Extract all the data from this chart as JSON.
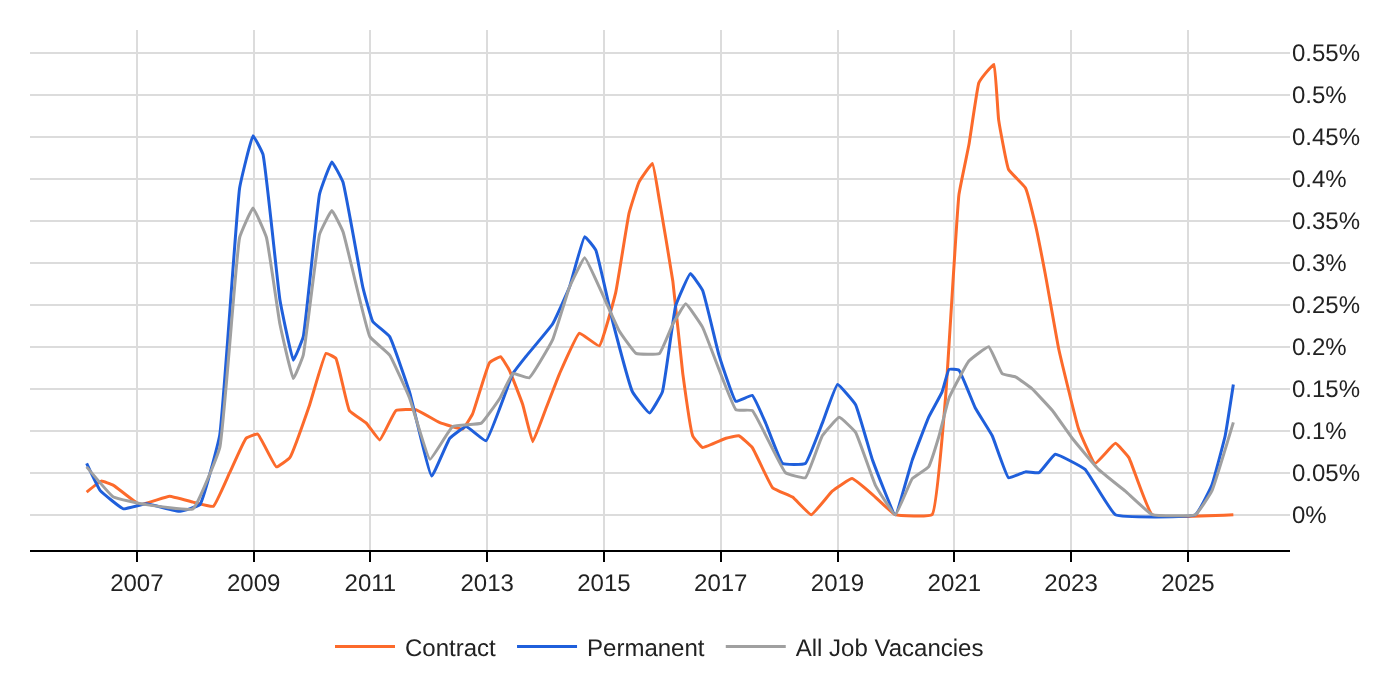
{
  "chart_data": {
    "type": "line",
    "xlim": [
      2005.17,
      2026.75
    ],
    "xticks": [
      2007,
      2009,
      2011,
      2013,
      2015,
      2017,
      2019,
      2021,
      2023,
      2025
    ],
    "ylim": [
      -0.042,
      0.577
    ],
    "yticks": [
      {
        "value": 0,
        "label": "0%"
      },
      {
        "value": 0.05,
        "label": "0.05%"
      },
      {
        "value": 0.1,
        "label": "0.1%"
      },
      {
        "value": 0.15,
        "label": "0.15%"
      },
      {
        "value": 0.2,
        "label": "0.2%"
      },
      {
        "value": 0.25,
        "label": "0.25%"
      },
      {
        "value": 0.3,
        "label": "0.3%"
      },
      {
        "value": 0.35,
        "label": "0.35%"
      },
      {
        "value": 0.4,
        "label": "0.4%"
      },
      {
        "value": 0.45,
        "label": "0.45%"
      },
      {
        "value": 0.5,
        "label": "0.5%"
      },
      {
        "value": 0.55,
        "label": "0.55%"
      }
    ],
    "grid": true,
    "legend": "bottom",
    "marker": "none",
    "line_style": "solid",
    "series": [
      {
        "name": "Contract",
        "color": "#fc6a2b",
        "x": [
          2006.14,
          2006.39,
          2006.6,
          2007.05,
          2007.56,
          2007.96,
          2008.31,
          2008.59,
          2008.87,
          2009.07,
          2009.39,
          2009.62,
          2009.96,
          2010.24,
          2010.41,
          2010.64,
          2010.93,
          2011.16,
          2011.44,
          2011.78,
          2012.18,
          2012.58,
          2012.75,
          2013.04,
          2013.23,
          2013.38,
          2013.61,
          2013.78,
          2014.01,
          2014.24,
          2014.58,
          2014.92,
          2015.2,
          2015.43,
          2015.6,
          2015.83,
          2015.95,
          2016.18,
          2016.35,
          2016.52,
          2016.69,
          2017.09,
          2017.31,
          2017.54,
          2017.89,
          2018.23,
          2018.55,
          2018.91,
          2019.25,
          2019.6,
          2019.99,
          2020.62,
          2020.85,
          2021.08,
          2021.25,
          2021.42,
          2021.53,
          2021.68,
          2021.76,
          2021.93,
          2022.22,
          2022.39,
          2022.56,
          2022.79,
          2023.13,
          2023.41,
          2023.76,
          2023.99,
          2024.39,
          2025.78
        ],
        "values": [
          0.027,
          0.04,
          0.035,
          0.012,
          0.022,
          0.015,
          0.01,
          0.05,
          0.091,
          0.096,
          0.057,
          0.068,
          0.131,
          0.192,
          0.186,
          0.124,
          0.109,
          0.089,
          0.124,
          0.125,
          0.11,
          0.102,
          0.12,
          0.181,
          0.188,
          0.172,
          0.131,
          0.087,
          0.127,
          0.168,
          0.216,
          0.201,
          0.264,
          0.359,
          0.396,
          0.418,
          0.374,
          0.278,
          0.168,
          0.094,
          0.08,
          0.091,
          0.094,
          0.08,
          0.032,
          0.021,
          0.0,
          0.028,
          0.043,
          0.024,
          0.0,
          0.0,
          0.139,
          0.381,
          0.44,
          0.514,
          0.525,
          0.536,
          0.47,
          0.411,
          0.389,
          0.345,
          0.286,
          0.197,
          0.102,
          0.061,
          0.085,
          0.068,
          0.0,
          0.0
        ]
      },
      {
        "name": "Permanent",
        "color": "#1f5fdb",
        "x": [
          2006.14,
          2006.37,
          2006.77,
          2007.16,
          2007.74,
          2008.08,
          2008.42,
          2008.76,
          2008.99,
          2009.16,
          2009.45,
          2009.68,
          2009.85,
          2010.13,
          2010.34,
          2010.53,
          2010.87,
          2011.04,
          2011.33,
          2011.67,
          2012.05,
          2012.36,
          2012.64,
          2012.98,
          2013.44,
          2013.66,
          2014.12,
          2014.41,
          2014.67,
          2014.86,
          2015.15,
          2015.49,
          2015.78,
          2016.0,
          2016.23,
          2016.48,
          2016.69,
          2016.97,
          2017.26,
          2017.54,
          2017.77,
          2018.06,
          2018.45,
          2018.74,
          2019.0,
          2019.31,
          2019.6,
          2019.99,
          2020.28,
          2020.56,
          2020.79,
          2020.91,
          2021.08,
          2021.36,
          2021.65,
          2021.93,
          2022.22,
          2022.45,
          2022.73,
          2023.24,
          2023.76,
          2025.13,
          2025.41,
          2025.64,
          2025.78
        ],
        "values": [
          0.061,
          0.029,
          0.007,
          0.013,
          0.004,
          0.012,
          0.095,
          0.389,
          0.451,
          0.429,
          0.256,
          0.184,
          0.212,
          0.382,
          0.42,
          0.396,
          0.271,
          0.23,
          0.212,
          0.146,
          0.046,
          0.091,
          0.105,
          0.088,
          0.168,
          0.188,
          0.227,
          0.271,
          0.331,
          0.315,
          0.23,
          0.146,
          0.121,
          0.146,
          0.249,
          0.287,
          0.267,
          0.19,
          0.135,
          0.142,
          0.109,
          0.061,
          0.061,
          0.109,
          0.155,
          0.131,
          0.065,
          0.0,
          0.065,
          0.116,
          0.146,
          0.173,
          0.172,
          0.127,
          0.094,
          0.044,
          0.051,
          0.05,
          0.072,
          0.054,
          0.0,
          0.0,
          0.035,
          0.094,
          0.155
        ]
      },
      {
        "name": "All Job Vacancies",
        "color": "#a0a0a0",
        "x": [
          2006.14,
          2006.6,
          2007.16,
          2007.96,
          2008.42,
          2008.76,
          2008.99,
          2009.22,
          2009.45,
          2009.68,
          2009.85,
          2010.13,
          2010.34,
          2010.53,
          2010.99,
          2011.33,
          2011.67,
          2012.02,
          2012.41,
          2012.9,
          2013.22,
          2013.44,
          2013.72,
          2014.12,
          2014.41,
          2014.67,
          2014.92,
          2015.26,
          2015.55,
          2015.95,
          2016.18,
          2016.4,
          2016.69,
          2017.26,
          2017.54,
          2018.11,
          2018.45,
          2018.74,
          2019.03,
          2019.31,
          2019.65,
          2019.99,
          2020.28,
          2020.56,
          2020.74,
          2020.91,
          2021.25,
          2021.59,
          2021.82,
          2022.05,
          2022.33,
          2022.68,
          2023.02,
          2023.47,
          2023.93,
          2024.39,
          2025.13,
          2025.41,
          2025.78
        ],
        "values": [
          0.057,
          0.021,
          0.012,
          0.007,
          0.08,
          0.33,
          0.365,
          0.33,
          0.227,
          0.162,
          0.19,
          0.334,
          0.362,
          0.337,
          0.212,
          0.19,
          0.139,
          0.066,
          0.105,
          0.109,
          0.139,
          0.168,
          0.163,
          0.208,
          0.271,
          0.306,
          0.271,
          0.219,
          0.192,
          0.192,
          0.227,
          0.251,
          0.223,
          0.125,
          0.124,
          0.05,
          0.044,
          0.094,
          0.116,
          0.098,
          0.035,
          0.0,
          0.043,
          0.057,
          0.094,
          0.139,
          0.183,
          0.2,
          0.168,
          0.164,
          0.15,
          0.124,
          0.091,
          0.054,
          0.028,
          0.0,
          0.0,
          0.028,
          0.11
        ]
      }
    ]
  }
}
